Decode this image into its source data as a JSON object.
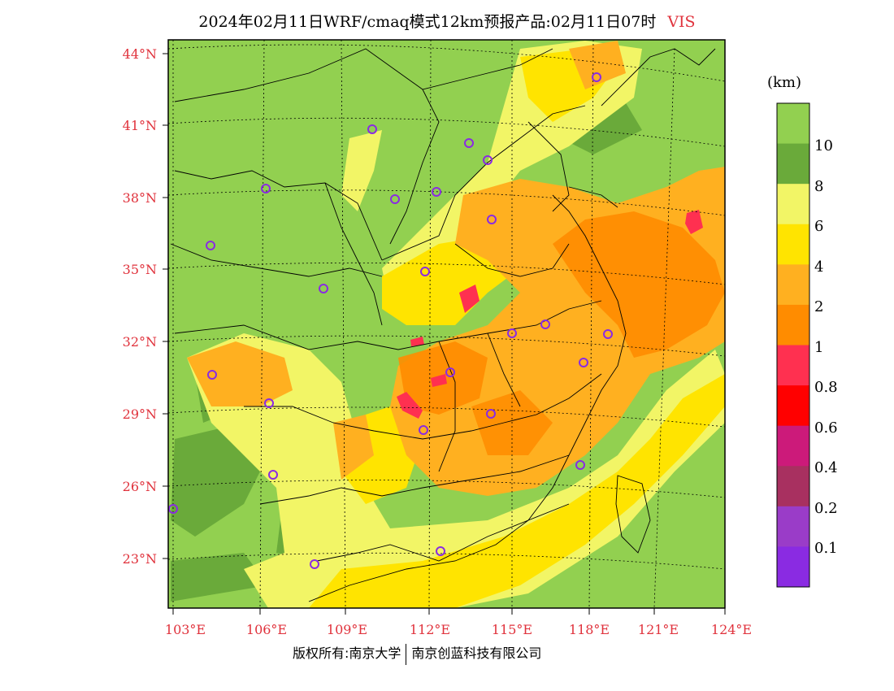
{
  "title": {
    "main": "2024年02月11日WRF/cmaq模式12km预报产品:02月11日07时",
    "variable": "VIS"
  },
  "axes": {
    "lat_labels": [
      "44°N",
      "41°N",
      "38°N",
      "35°N",
      "32°N",
      "29°N",
      "26°N",
      "23°N"
    ],
    "lon_labels": [
      "103°E",
      "106°E",
      "109°E",
      "112°E",
      "115°E",
      "118°E",
      "121°E",
      "124°E"
    ]
  },
  "colorbar": {
    "unit": "(km)",
    "labels": [
      "10",
      "8",
      "6",
      "4",
      "2",
      "1",
      "0.8",
      "0.6",
      "0.4",
      "0.2",
      "0.1"
    ],
    "colors": [
      "#92d050",
      "#6aaa3a",
      "#f2f566",
      "#ffe400",
      "#ffb020",
      "#ff8c00",
      "#ff3050",
      "#ff0000",
      "#cc1a7a",
      "#a83060",
      "#9a3cc8",
      "#8a2be2"
    ]
  },
  "stations": 24,
  "footer": {
    "left": "版权所有:南京大学",
    "right": "南京创蓝科技有限公司"
  },
  "colors": {
    "axis_label": "#e0323c",
    "station_marker": "#8a2be2"
  }
}
